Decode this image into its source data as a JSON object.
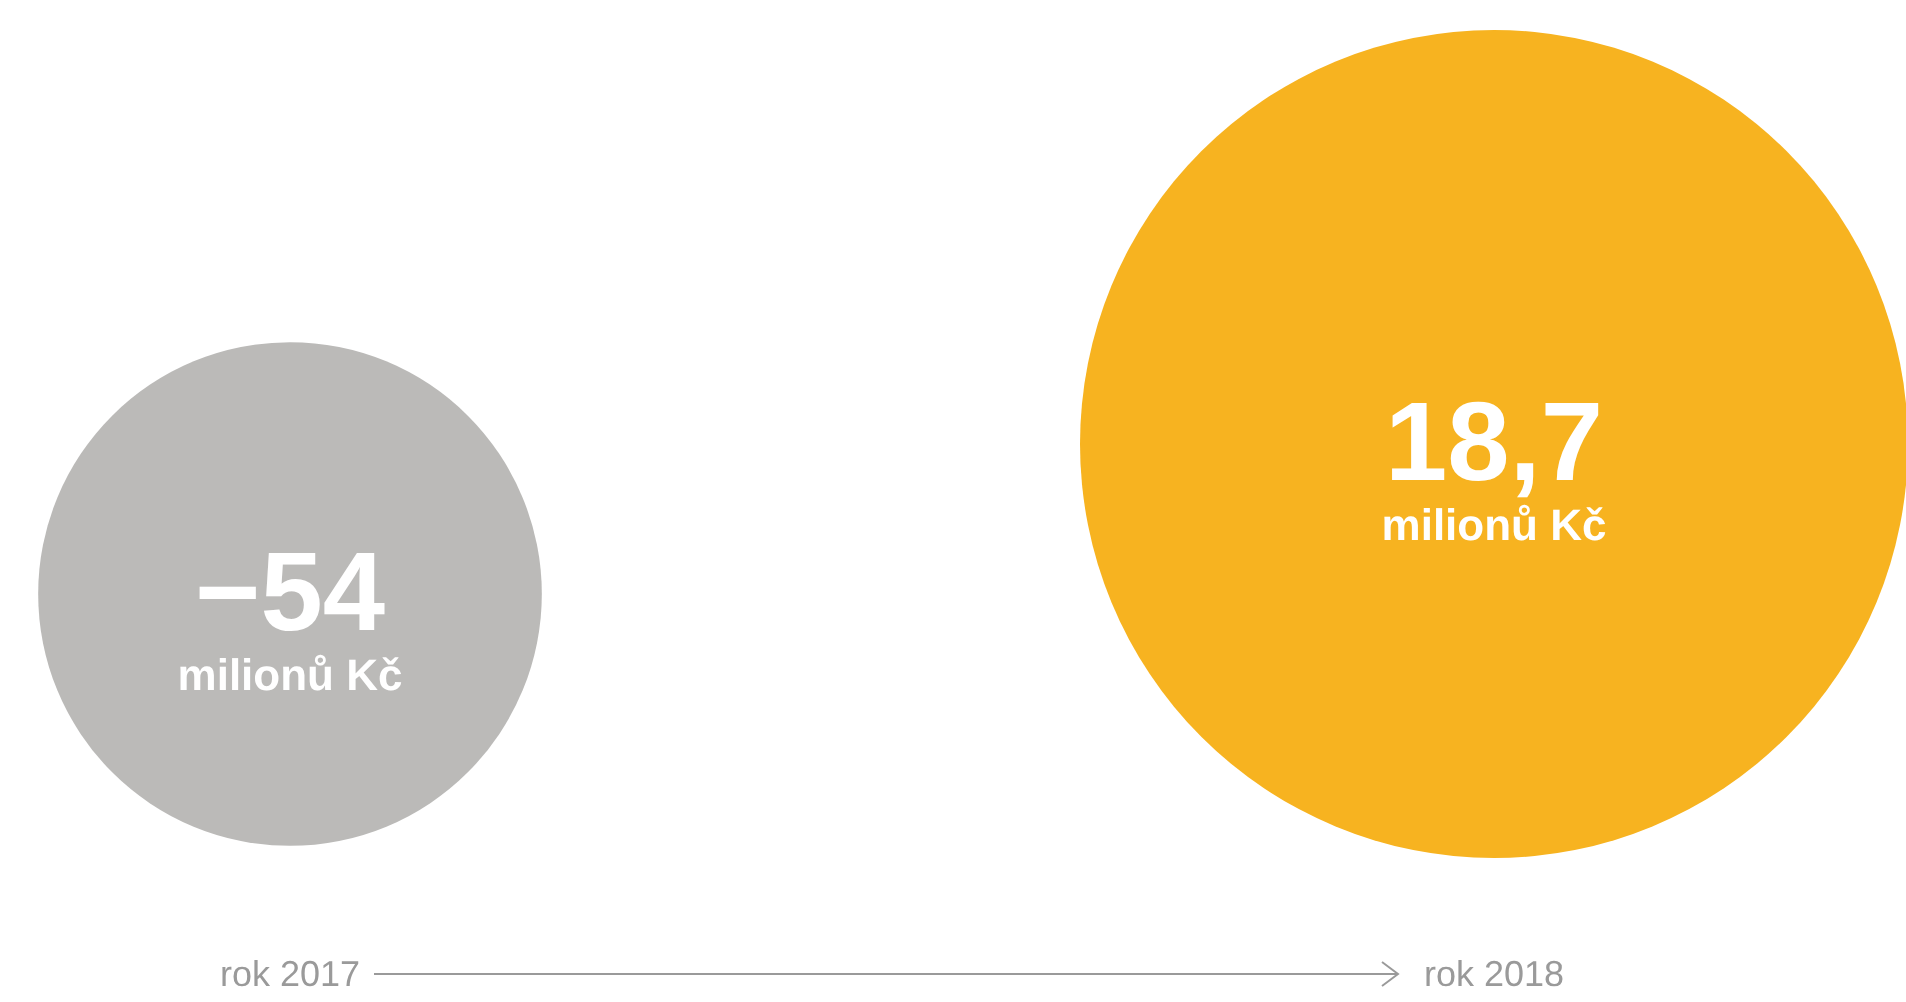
{
  "chart_data": {
    "type": "bubble",
    "categories": [
      "rok 2017",
      "rok 2018"
    ],
    "values": [
      -54,
      18.7
    ],
    "sizes": [
      0.37,
      1
    ],
    "colors": [
      "#bbbab8",
      "#f7b320"
    ],
    "data_labels": true,
    "value_labels": [
      "−54",
      "18,7"
    ],
    "tick_labels": "x",
    "annotations": [
      {
        "text": "milionů Kč",
        "x": "rok 2017",
        "y": -54
      },
      {
        "text": "milionů Kč",
        "x": "rok 2018",
        "y": 18.7
      }
    ]
  }
}
